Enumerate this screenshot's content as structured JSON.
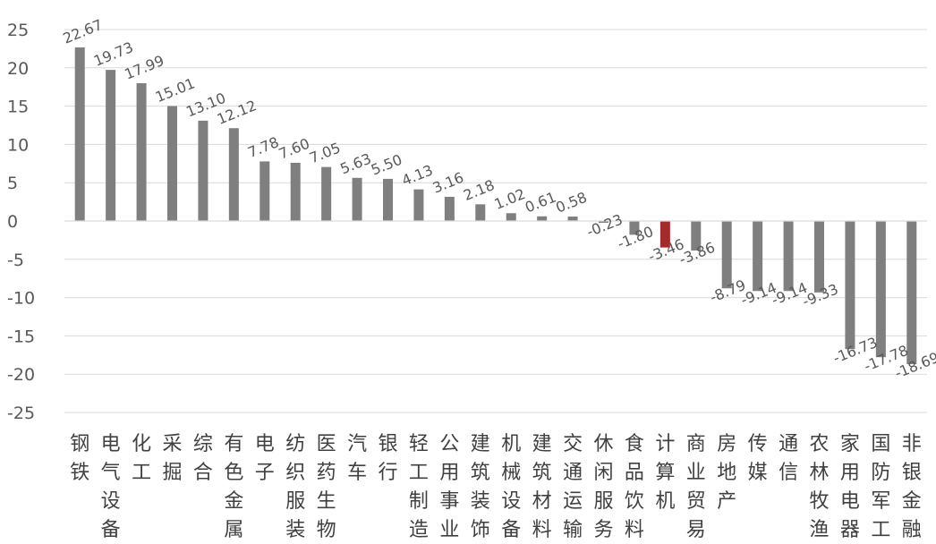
{
  "chart_data": {
    "type": "bar",
    "title": "",
    "xlabel": "",
    "ylabel": "",
    "ylim": [
      -25,
      25
    ],
    "yticks": [
      25,
      20,
      15,
      10,
      5,
      0,
      -5,
      -10,
      -15,
      -20,
      -25
    ],
    "grid": true,
    "legend": "none",
    "colors": {
      "default": "#7f7f7f",
      "highlight": "#a52a2a",
      "grid": "#d9d9d9"
    },
    "highlight_index": 19,
    "categories": [
      "钢铁",
      "电气设备",
      "化工",
      "采掘",
      "综合",
      "有色金属",
      "电子",
      "纺织服装",
      "医药生物",
      "汽车",
      "银行",
      "轻工制造",
      "公用事业",
      "建筑装饰",
      "机械设备",
      "建筑材料",
      "交通运输",
      "休闲服务",
      "食品饮料",
      "计算机",
      "商业贸易",
      "房地产",
      "传媒",
      "通信",
      "农林牧渔",
      "家用电器",
      "国防军工",
      "非银金融"
    ],
    "values": [
      22.67,
      19.73,
      17.99,
      15.01,
      13.1,
      12.12,
      7.78,
      7.6,
      7.05,
      5.63,
      5.5,
      4.13,
      3.16,
      2.18,
      1.02,
      0.61,
      0.58,
      -0.23,
      -1.8,
      -3.46,
      -3.86,
      -8.79,
      -9.14,
      -9.14,
      -9.33,
      -16.73,
      -17.78,
      -18.69
    ],
    "labels": [
      "22.67",
      "19.73",
      "17.99",
      "15.01",
      "13.10",
      "12.12",
      "7.78",
      "7.60",
      "7.05",
      "5.63",
      "5.50",
      "4.13",
      "3.16",
      "2.18",
      "1.02",
      "0.61",
      "0.58",
      "-0.23",
      "-1.80",
      "-3.46",
      "-3.86",
      "-8.79",
      "-9.14",
      "-9.14",
      "-9.33",
      "-16.73",
      "-17.78",
      "-18.69"
    ]
  }
}
